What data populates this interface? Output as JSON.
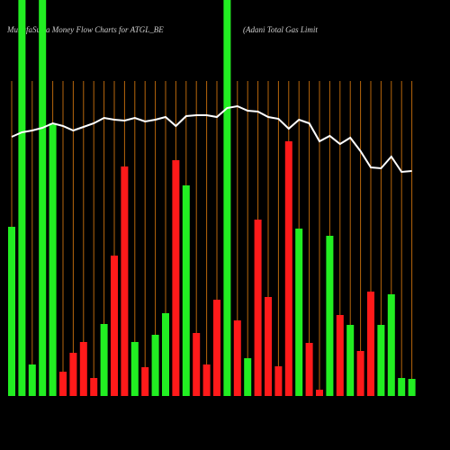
{
  "chart_data": {
    "type": "bar",
    "title": "MunafaSutra  Money Flow  Charts for ATGL_BE",
    "subtitle": "(Adani  Total Gas Limit",
    "ylim": [
      0,
      440
    ],
    "values": [
      188,
      440,
      35,
      440,
      303,
      27,
      48,
      60,
      20,
      80,
      156,
      255,
      60,
      32,
      68,
      92,
      262,
      234,
      70,
      35,
      107,
      440,
      84,
      42,
      196,
      110,
      33,
      283,
      186,
      59,
      7,
      178,
      90,
      79,
      50,
      116,
      79,
      113,
      20,
      19
    ],
    "colors": [
      "#22ee22",
      "#22ee22",
      "#22ee22",
      "#22ee22",
      "#22ee22",
      "#ff1a1a",
      "#ff1a1a",
      "#ff1a1a",
      "#ff1a1a",
      "#22ee22",
      "#ff1a1a",
      "#ff1a1a",
      "#22ee22",
      "#ff1a1a",
      "#22ee22",
      "#22ee22",
      "#ff1a1a",
      "#22ee22",
      "#ff1a1a",
      "#ff1a1a",
      "#ff1a1a",
      "#22ee22",
      "#ff1a1a",
      "#22ee22",
      "#ff1a1a",
      "#ff1a1a",
      "#ff1a1a",
      "#ff1a1a",
      "#22ee22",
      "#ff1a1a",
      "#ff1a1a",
      "#22ee22",
      "#ff1a1a",
      "#22ee22",
      "#ff1a1a",
      "#ff1a1a",
      "#22ee22",
      "#22ee22",
      "#22ee22",
      "#22ee22"
    ],
    "line_values": [
      288,
      293,
      295,
      298,
      303,
      300,
      295,
      299,
      303,
      309,
      307,
      306,
      309,
      305,
      307,
      310,
      300,
      311,
      312,
      312,
      310,
      320,
      322,
      317,
      316,
      310,
      308,
      297,
      307,
      303,
      283,
      289,
      280,
      287,
      272,
      254,
      253,
      266,
      249,
      250
    ],
    "line_color": "#ffffff",
    "grid_color": "#b8660b"
  }
}
